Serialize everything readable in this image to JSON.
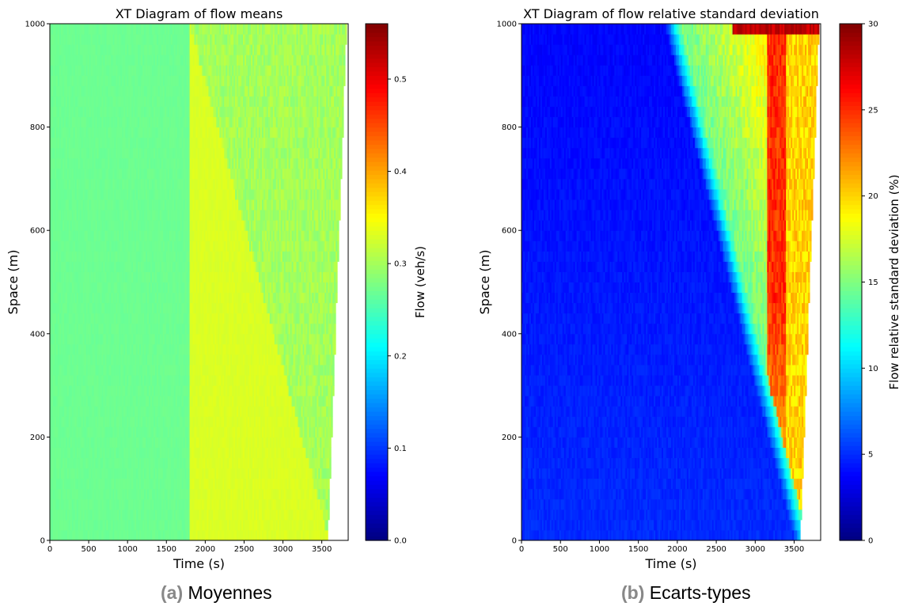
{
  "captions": {
    "a_label": "(a)",
    "a_text": "Moyennes",
    "b_label": "(b)",
    "b_text": "Ecarts-types"
  },
  "colormap": "jet",
  "chart_data": [
    {
      "type": "heatmap",
      "title": "XT Diagram of flow means",
      "xlabel": "Time (s)",
      "ylabel": "Space (m)",
      "xlim": [
        0,
        3840
      ],
      "ylim": [
        0,
        1000
      ],
      "xticks": [
        0,
        500,
        1000,
        1500,
        2000,
        2500,
        3000,
        3500
      ],
      "xtick_labels": [
        "0",
        "500",
        "1000",
        "1500",
        "2000",
        "2500",
        "3000",
        "3500"
      ],
      "yticks": [
        0,
        200,
        400,
        600,
        800,
        1000
      ],
      "ytick_labels": [
        "0",
        "200",
        "400",
        "600",
        "800",
        "1000"
      ],
      "colorbar": {
        "label": "Flow (veh/s)",
        "range": [
          0,
          0.56
        ],
        "ticks": [
          0.0,
          0.1,
          0.2,
          0.3,
          0.4,
          0.5
        ],
        "tick_labels": [
          "0.0",
          "0.1",
          "0.2",
          "0.3",
          "0.4",
          "0.5"
        ]
      },
      "regions": [
        {
          "time_start": 0,
          "time_end": 1800,
          "space_start": 0,
          "space_end": 1000,
          "value": 0.27
        },
        {
          "time_start": 1800,
          "time_end": 3600,
          "space_start": 0,
          "space_end": 1000,
          "value": 0.33
        },
        {
          "wedge_apex_time": 1800,
          "wedge_apex_space": 1000,
          "boundary_at_space_0": 3600,
          "value": 0.3
        }
      ],
      "data_end_time": {
        "at_space_0": 3580,
        "at_space_1000": 3820
      },
      "grid": false
    },
    {
      "type": "heatmap",
      "title": "XT Diagram of flow relative standard deviation",
      "xlabel": "Time (s)",
      "ylabel": "Space (m)",
      "xlim": [
        0,
        3840
      ],
      "ylim": [
        0,
        1000
      ],
      "xticks": [
        0,
        500,
        1000,
        1500,
        2000,
        2500,
        3000,
        3500
      ],
      "xtick_labels": [
        "0",
        "500",
        "1000",
        "1500",
        "2000",
        "2500",
        "3000",
        "3500"
      ],
      "yticks": [
        0,
        200,
        400,
        600,
        800,
        1000
      ],
      "ytick_labels": [
        "0",
        "200",
        "400",
        "600",
        "800",
        "1000"
      ],
      "colorbar": {
        "label": "Flow relative standard deviation (%)",
        "range": [
          0,
          30
        ],
        "ticks": [
          0,
          5,
          10,
          15,
          20,
          25,
          30
        ],
        "tick_labels": [
          "0",
          "5",
          "10",
          "15",
          "20",
          "25",
          "30"
        ]
      },
      "front": {
        "time_at_space_1000": 1900,
        "time_at_space_0": 3560
      },
      "values": {
        "before_front": 5,
        "behind_front": 17,
        "peak": 25,
        "peak_band_time": [
          3150,
          3400
        ]
      },
      "data_end_time": {
        "at_space_0": 3580,
        "at_space_1000": 3820
      },
      "grid": false
    }
  ]
}
